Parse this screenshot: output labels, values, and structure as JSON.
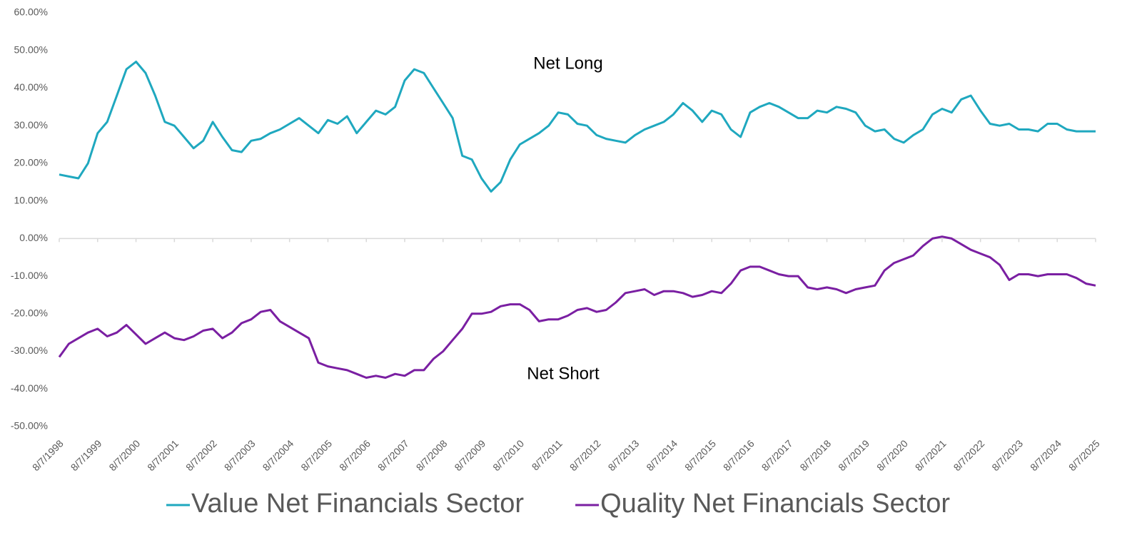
{
  "chart_data": {
    "type": "line",
    "annotations": [
      "Net Long",
      "Net Short"
    ],
    "categories": [
      "8/7/1998",
      null,
      null,
      null,
      "8/7/1999",
      null,
      null,
      null,
      "8/7/2000",
      null,
      null,
      null,
      "8/7/2001",
      null,
      null,
      null,
      "8/7/2002",
      null,
      null,
      null,
      "8/7/2003",
      null,
      null,
      null,
      "8/7/2004",
      null,
      null,
      null,
      "8/7/2005",
      null,
      null,
      null,
      "8/7/2006",
      null,
      null,
      null,
      "8/7/2007",
      null,
      null,
      null,
      "8/7/2008",
      null,
      null,
      null,
      "8/7/2009",
      null,
      null,
      null,
      "8/7/2010",
      null,
      null,
      null,
      "8/7/2011",
      null,
      null,
      null,
      "8/7/2012",
      null,
      null,
      null,
      "8/7/2013",
      null,
      null,
      null,
      "8/7/2014",
      null,
      null,
      null,
      "8/7/2015",
      null,
      null,
      null,
      "8/7/2016",
      null,
      null,
      null,
      "8/7/2017",
      null,
      null,
      null,
      "8/7/2018",
      null,
      null,
      null,
      "8/7/2019",
      null,
      null,
      null,
      "8/7/2020",
      null,
      null,
      null,
      "8/7/2021",
      null,
      null,
      null,
      "8/7/2022",
      null,
      null,
      null,
      "8/7/2023",
      null,
      null,
      null,
      "8/7/2024",
      null,
      null,
      null,
      "8/7/2025"
    ],
    "series": [
      {
        "name": "Value Net Financials Sector",
        "color": "#1fa8bf",
        "values": [
          17,
          16.5,
          16,
          20,
          28,
          31,
          38,
          45,
          47,
          44,
          38,
          31,
          30,
          27,
          24,
          26,
          31,
          27,
          23.5,
          23,
          26,
          26.5,
          28,
          29,
          30.5,
          32,
          30,
          28,
          31.5,
          30.5,
          32.5,
          28,
          31,
          34,
          33,
          35,
          42,
          45,
          44,
          40,
          36,
          32,
          22,
          21,
          16,
          12.5,
          15,
          21,
          25,
          26.5,
          28,
          30,
          33.5,
          33,
          30.5,
          30,
          27.5,
          26.5,
          26,
          25.5,
          27.5,
          29,
          30,
          31,
          33,
          36,
          34,
          31,
          34,
          33,
          29,
          27,
          33.5,
          35,
          36,
          35,
          33.5,
          32,
          32,
          34,
          33.5,
          35,
          34.5,
          33.5,
          30,
          28.5,
          29,
          26.5,
          25.5,
          27.5,
          29,
          33,
          34.5,
          33.5,
          37,
          38,
          34,
          30.5,
          30,
          30.5,
          29,
          29,
          28.5,
          30.5,
          30.5,
          29,
          28.5,
          28.5,
          28.5
        ]
      },
      {
        "name": "Quality Net Financials Sector",
        "color": "#7a1fa2",
        "values": [
          -31.5,
          -28,
          -26.5,
          -25,
          -24,
          -26,
          -25,
          -23,
          -25.5,
          -28,
          -26.5,
          -25,
          -26.5,
          -27,
          -26,
          -24.5,
          -24,
          -26.5,
          -25,
          -22.5,
          -21.5,
          -19.5,
          -19,
          -22,
          -23.5,
          -25,
          -26.5,
          -33,
          -34,
          -34.5,
          -35,
          -36,
          -37,
          -36.5,
          -37,
          -36,
          -36.5,
          -35,
          -35,
          -32,
          -30,
          -27,
          -24,
          -20,
          -20,
          -19.5,
          -18,
          -17.5,
          -17.5,
          -19,
          -22,
          -21.5,
          -21.5,
          -20.5,
          -19,
          -18.5,
          -19.5,
          -19,
          -17,
          -14.5,
          -14,
          -13.5,
          -15,
          -14,
          -14,
          -14.5,
          -15.5,
          -15,
          -14,
          -14.5,
          -12,
          -8.5,
          -7.5,
          -7.5,
          -8.5,
          -9.5,
          -10,
          -10,
          -13,
          -13.5,
          -13,
          -13.5,
          -14.5,
          -13.5,
          -13,
          -12.5,
          -8.5,
          -6.5,
          -5.5,
          -4.5,
          -2,
          0,
          0.5,
          0,
          -1.5,
          -3,
          -4,
          -5,
          -7,
          -11,
          -9.5,
          -9.5,
          -10,
          -9.5,
          -9.5,
          -9.5,
          -10.5,
          -12,
          -12.5
        ]
      }
    ],
    "ylim": [
      -50,
      60
    ],
    "yticks": [
      {
        "value": -50,
        "label": "-50.00%"
      },
      {
        "value": -40,
        "label": "-40.00%"
      },
      {
        "value": -30,
        "label": "-30.00%"
      },
      {
        "value": -20,
        "label": "-20.00%"
      },
      {
        "value": -10,
        "label": "-10.00%"
      },
      {
        "value": 0,
        "label": "0.00%"
      },
      {
        "value": 10,
        "label": "10.00%"
      },
      {
        "value": 20,
        "label": "20.00%"
      },
      {
        "value": 30,
        "label": "30.00%"
      },
      {
        "value": 40,
        "label": "40.00%"
      },
      {
        "value": 50,
        "label": "50.00%"
      },
      {
        "value": 60,
        "label": "60.00%"
      }
    ],
    "grid": false,
    "legend": "bottom"
  }
}
